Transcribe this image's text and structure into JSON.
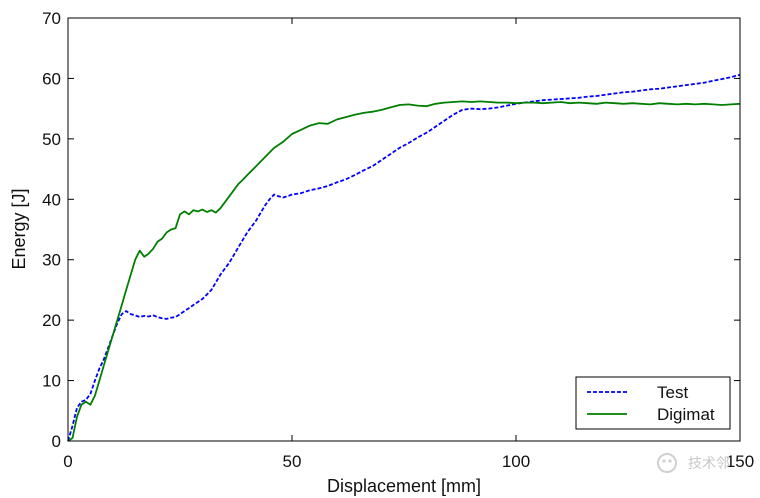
{
  "chart_data": {
    "type": "line",
    "title": "",
    "xlabel": "Displacement [mm]",
    "ylabel": "Energy [J]",
    "xlim": [
      0,
      150
    ],
    "ylim": [
      0,
      70
    ],
    "xticks": [
      0,
      50,
      100,
      150
    ],
    "yticks": [
      0,
      10,
      20,
      30,
      40,
      50,
      60,
      70
    ],
    "grid": false,
    "legend_position": "bottom-right",
    "series": [
      {
        "name": "Test",
        "color": "#0000ff",
        "dash": "dashed",
        "x": [
          0,
          1,
          2,
          3,
          4,
          5,
          6,
          7,
          8,
          9,
          10,
          11,
          12,
          13,
          14,
          15,
          16,
          17,
          18,
          19,
          20,
          21,
          22,
          23,
          24,
          25,
          26,
          27,
          28,
          29,
          30,
          32,
          34,
          36,
          38,
          40,
          42,
          44,
          45,
          46,
          47,
          48,
          49,
          50,
          52,
          54,
          56,
          58,
          60,
          62,
          64,
          66,
          68,
          70,
          72,
          74,
          76,
          78,
          80,
          82,
          84,
          86,
          88,
          90,
          92,
          94,
          96,
          98,
          100,
          102,
          104,
          106,
          108,
          110,
          112,
          114,
          116,
          118,
          120,
          122,
          124,
          126,
          128,
          130,
          132,
          134,
          136,
          138,
          140,
          142,
          144,
          146,
          148,
          150
        ],
        "y": [
          0,
          2.5,
          5.5,
          6.5,
          6.8,
          7.8,
          10,
          12,
          13.5,
          15.5,
          17.5,
          19.5,
          21,
          21.5,
          21,
          20.8,
          20.5,
          20.7,
          20.6,
          20.8,
          20.5,
          20.3,
          20.2,
          20.4,
          20.5,
          21,
          21.5,
          22,
          22.5,
          23,
          23.5,
          25,
          27.5,
          29.5,
          32,
          34.5,
          36.5,
          39,
          40,
          40.8,
          40.5,
          40.3,
          40.5,
          40.8,
          41,
          41.5,
          41.8,
          42.2,
          42.8,
          43.3,
          44,
          44.8,
          45.5,
          46.5,
          47.5,
          48.5,
          49.3,
          50.2,
          51,
          52,
          53,
          54,
          54.8,
          55,
          54.9,
          55,
          55.2,
          55.5,
          55.8,
          56,
          56.2,
          56.4,
          56.5,
          56.6,
          56.7,
          56.8,
          57,
          57.1,
          57.3,
          57.5,
          57.7,
          57.8,
          58,
          58.2,
          58.3,
          58.5,
          58.7,
          58.9,
          59.1,
          59.3,
          59.6,
          59.9,
          60.2,
          60.6
        ]
      },
      {
        "name": "Digimat",
        "color": "#007f00",
        "dash": "solid",
        "x": [
          0,
          1,
          2,
          3,
          4,
          5,
          6,
          7,
          8,
          9,
          10,
          11,
          12,
          13,
          14,
          15,
          16,
          17,
          18,
          19,
          20,
          21,
          22,
          23,
          24,
          25,
          26,
          27,
          28,
          29,
          30,
          31,
          32,
          33,
          34,
          35,
          36,
          37,
          38,
          39,
          40,
          42,
          44,
          46,
          48,
          50,
          52,
          54,
          56,
          58,
          60,
          62,
          64,
          66,
          68,
          70,
          72,
          74,
          76,
          78,
          80,
          82,
          84,
          86,
          88,
          90,
          92,
          94,
          96,
          98,
          100,
          102,
          104,
          106,
          108,
          110,
          112,
          114,
          116,
          118,
          120,
          122,
          124,
          126,
          128,
          130,
          132,
          134,
          136,
          138,
          140,
          142,
          144,
          146,
          148,
          150
        ],
        "y": [
          0,
          0.5,
          4,
          6,
          6.5,
          6,
          7.5,
          10,
          12.5,
          15,
          17.5,
          20,
          22.5,
          25,
          27.5,
          30,
          31.5,
          30.5,
          31,
          31.8,
          33,
          33.5,
          34.5,
          35,
          35.2,
          37.5,
          38,
          37.5,
          38.2,
          38,
          38.3,
          37.9,
          38.2,
          37.8,
          38.5,
          39.5,
          40.5,
          41.5,
          42.5,
          43.2,
          44,
          45.5,
          47,
          48.5,
          49.5,
          50.8,
          51.5,
          52.2,
          52.6,
          52.5,
          53.2,
          53.6,
          54,
          54.3,
          54.5,
          54.8,
          55.2,
          55.6,
          55.7,
          55.5,
          55.4,
          55.8,
          56,
          56.1,
          56.2,
          56.1,
          56.2,
          56.1,
          56,
          56,
          55.9,
          56,
          56,
          55.9,
          56,
          56.1,
          55.9,
          56,
          55.9,
          55.8,
          56,
          55.9,
          55.8,
          55.9,
          55.8,
          55.7,
          55.9,
          55.8,
          55.7,
          55.8,
          55.7,
          55.8,
          55.7,
          55.6,
          55.7,
          55.8
        ]
      }
    ]
  },
  "watermark": {
    "text": "技术邻"
  }
}
